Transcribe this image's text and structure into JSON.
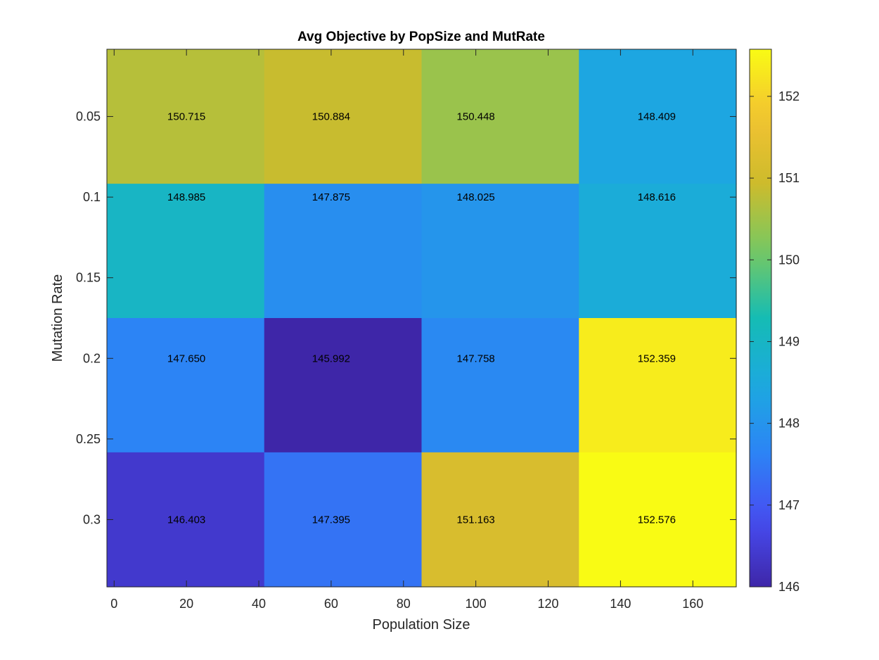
{
  "chart_data": {
    "type": "heatmap",
    "title": "Avg Objective by PopSize and MutRate",
    "xlabel": "Population Size",
    "ylabel": "Mutation Rate",
    "xlim": [
      -2,
      172
    ],
    "ylim": [
      0.0083,
      0.3417
    ],
    "y_reversed": true,
    "x_ticks": [
      0,
      20,
      40,
      60,
      80,
      100,
      120,
      140,
      160
    ],
    "y_ticks": [
      0.05,
      0.1,
      0.15,
      0.2,
      0.25,
      0.3
    ],
    "x_tick_labels": [
      "0",
      "20",
      "40",
      "60",
      "80",
      "100",
      "120",
      "140",
      "160"
    ],
    "y_tick_labels": [
      "0.05",
      "0.1",
      "0.15",
      "0.2",
      "0.25",
      "0.3"
    ],
    "x_edges": [
      -2,
      41.5,
      85,
      128.5,
      172
    ],
    "y_edges": [
      0.0083,
      0.0917,
      0.175,
      0.2583,
      0.3417
    ],
    "rows": [
      {
        "mutation_rate": 0.05,
        "values": [
          150.715,
          150.884,
          150.448,
          148.409
        ]
      },
      {
        "mutation_rate": 0.1,
        "values": [
          148.985,
          147.875,
          148.025,
          148.616
        ]
      },
      {
        "mutation_rate": 0.2,
        "values": [
          147.65,
          145.992,
          147.758,
          152.359
        ]
      },
      {
        "mutation_rate": 0.3,
        "values": [
          146.403,
          147.395,
          151.163,
          152.576
        ]
      }
    ],
    "cell_labels": [
      [
        {
          "text": "150.715",
          "x": 20,
          "y": 0.05
        },
        {
          "text": "150.884",
          "x": 60,
          "y": 0.05
        },
        {
          "text": "150.448",
          "x": 100,
          "y": 0.05
        },
        {
          "text": "148.409",
          "x": 150,
          "y": 0.05
        }
      ],
      [
        {
          "text": "148.985",
          "x": 20,
          "y": 0.1
        },
        {
          "text": "147.875",
          "x": 60,
          "y": 0.1
        },
        {
          "text": "148.025",
          "x": 100,
          "y": 0.1
        },
        {
          "text": "148.616",
          "x": 150,
          "y": 0.1
        }
      ],
      [
        {
          "text": "147.650",
          "x": 20,
          "y": 0.2
        },
        {
          "text": "145.992",
          "x": 60,
          "y": 0.2
        },
        {
          "text": "147.758",
          "x": 100,
          "y": 0.2
        },
        {
          "text": "152.359",
          "x": 150,
          "y": 0.2
        }
      ],
      [
        {
          "text": "146.403",
          "x": 20,
          "y": 0.3
        },
        {
          "text": "147.395",
          "x": 60,
          "y": 0.3
        },
        {
          "text": "151.163",
          "x": 100,
          "y": 0.3
        },
        {
          "text": "152.576",
          "x": 150,
          "y": 0.3
        }
      ]
    ],
    "colormap": "parula",
    "colorbar": {
      "min": 146.0,
      "max": 152.576,
      "ticks": [
        146,
        147,
        148,
        149,
        150,
        151,
        152
      ],
      "tick_labels": [
        "146",
        "147",
        "148",
        "149",
        "150",
        "151",
        "152"
      ],
      "position": "right"
    },
    "grid": false
  }
}
